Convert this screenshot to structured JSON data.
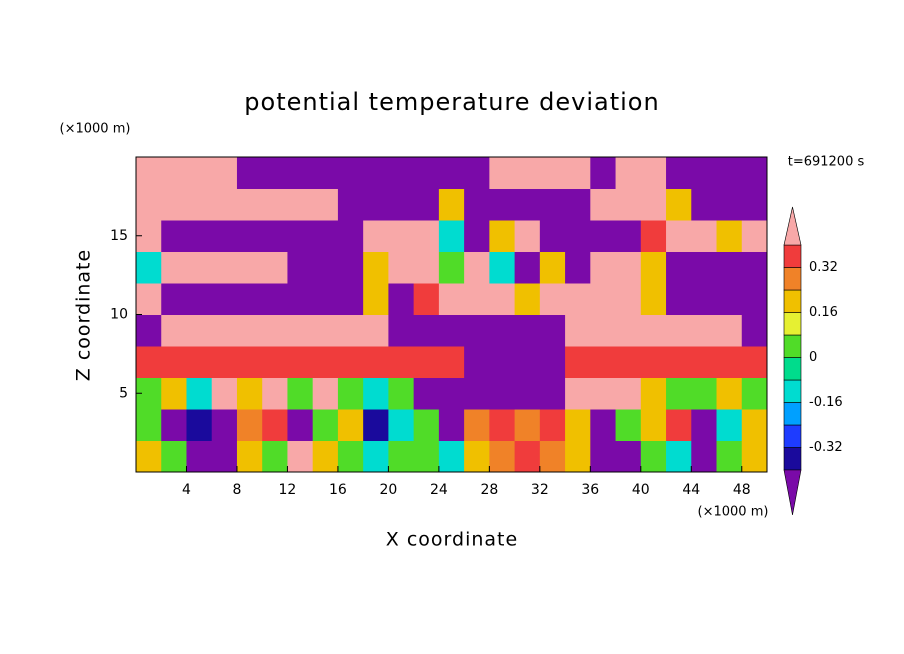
{
  "chart_data": {
    "type": "contour",
    "title": "potential temperature deviation",
    "x_label": "X coordinate",
    "y_label": "Z coordinate",
    "x_units": "(×1000 m)",
    "y_units": "(×1000 m)",
    "time_label": "t=691200 s",
    "xlim": [
      0,
      50
    ],
    "ylim": [
      0,
      20
    ],
    "xticks": [
      4,
      8,
      12,
      16,
      20,
      24,
      28,
      32,
      36,
      40,
      44,
      48
    ],
    "yticks": [
      5,
      10,
      15
    ],
    "levels": [
      -0.4,
      -0.32,
      -0.24,
      -0.16,
      -0.08,
      0,
      0.08,
      0.16,
      0.24,
      0.32,
      0.4
    ],
    "colors": [
      "#7a0aa8",
      "#1a0a9c",
      "#1e3cff",
      "#00a0ff",
      "#00dcd0",
      "#00dc8c",
      "#50dc28",
      "#e6f032",
      "#f0c000",
      "#f08228",
      "#f03c3c",
      "#f8a8a8"
    ],
    "colorbar_ticks": [
      0.32,
      0.16,
      0,
      -0.16,
      -0.32
    ],
    "x": [
      1,
      3,
      5,
      7,
      9,
      11,
      13,
      15,
      17,
      19,
      21,
      23,
      25,
      27,
      29,
      31,
      33,
      35,
      37,
      39,
      41,
      43,
      45,
      47,
      49
    ],
    "y": [
      1,
      3,
      5,
      7,
      9,
      11,
      13,
      15,
      17,
      19
    ],
    "z": [
      [
        0.2,
        0.05,
        -0.5,
        -0.5,
        0.2,
        0.05,
        0.5,
        0.2,
        0.05,
        -0.1,
        0.05,
        0.05,
        -0.1,
        0.2,
        0.3,
        0.36,
        0.3,
        0.2,
        -0.5,
        -0.5,
        0.05,
        -0.1,
        -0.5,
        0.05,
        0.2
      ],
      [
        0.05,
        -0.5,
        -0.36,
        -0.5,
        0.3,
        0.36,
        -0.5,
        0.05,
        0.2,
        -0.36,
        -0.1,
        0.05,
        -0.5,
        0.3,
        0.36,
        0.3,
        0.36,
        0.2,
        -0.5,
        0.05,
        0.2,
        0.36,
        -0.5,
        -0.1,
        0.2
      ],
      [
        0.05,
        0.2,
        -0.1,
        0.5,
        0.2,
        0.5,
        0.05,
        0.5,
        0.05,
        -0.1,
        0.05,
        -0.5,
        -0.5,
        -0.5,
        -0.5,
        -0.5,
        -0.5,
        0.5,
        0.5,
        0.5,
        0.2,
        0.05,
        0.05,
        0.2,
        0.05
      ],
      [
        0.36,
        0.36,
        0.36,
        0.36,
        0.36,
        0.36,
        0.36,
        0.36,
        0.36,
        0.36,
        0.36,
        0.36,
        0.36,
        -0.5,
        -0.5,
        -0.5,
        -0.5,
        0.36,
        0.36,
        0.36,
        0.36,
        0.36,
        0.36,
        0.36,
        0.36
      ],
      [
        -0.5,
        0.5,
        0.5,
        0.5,
        0.5,
        0.5,
        0.5,
        0.5,
        0.5,
        0.5,
        -0.5,
        -0.5,
        -0.5,
        -0.5,
        -0.5,
        -0.5,
        -0.5,
        0.5,
        0.5,
        0.5,
        0.5,
        0.5,
        0.5,
        0.5,
        -0.5
      ],
      [
        0.5,
        -0.5,
        -0.5,
        -0.5,
        -0.5,
        -0.5,
        -0.5,
        -0.5,
        -0.5,
        0.2,
        -0.5,
        0.36,
        0.5,
        0.5,
        0.5,
        0.2,
        0.5,
        0.5,
        0.5,
        0.5,
        0.2,
        -0.5,
        -0.5,
        -0.5,
        -0.5
      ],
      [
        -0.1,
        0.5,
        0.5,
        0.5,
        0.5,
        0.5,
        -0.5,
        -0.5,
        -0.5,
        0.2,
        0.5,
        0.5,
        0.05,
        0.5,
        -0.1,
        -0.5,
        0.2,
        -0.5,
        0.5,
        0.5,
        0.2,
        -0.5,
        -0.5,
        -0.5,
        -0.5
      ],
      [
        0.5,
        -0.5,
        -0.5,
        -0.5,
        -0.5,
        -0.5,
        -0.5,
        -0.5,
        -0.5,
        0.5,
        0.5,
        0.5,
        -0.1,
        -0.5,
        0.2,
        0.5,
        -0.5,
        -0.5,
        -0.5,
        -0.5,
        0.36,
        0.5,
        0.5,
        0.2,
        0.5
      ],
      [
        0.5,
        0.5,
        0.5,
        0.5,
        0.5,
        0.5,
        0.5,
        0.5,
        -0.5,
        -0.5,
        -0.5,
        -0.5,
        0.2,
        -0.5,
        -0.5,
        -0.5,
        -0.5,
        -0.5,
        0.5,
        0.5,
        0.5,
        0.2,
        -0.5,
        -0.5,
        -0.5
      ],
      [
        0.5,
        0.5,
        0.5,
        0.5,
        -0.5,
        -0.5,
        -0.5,
        -0.5,
        -0.5,
        -0.5,
        -0.5,
        -0.5,
        -0.5,
        -0.5,
        0.5,
        0.5,
        0.5,
        0.5,
        -0.5,
        0.5,
        0.5,
        -0.5,
        -0.5,
        -0.5,
        -0.5
      ]
    ]
  }
}
